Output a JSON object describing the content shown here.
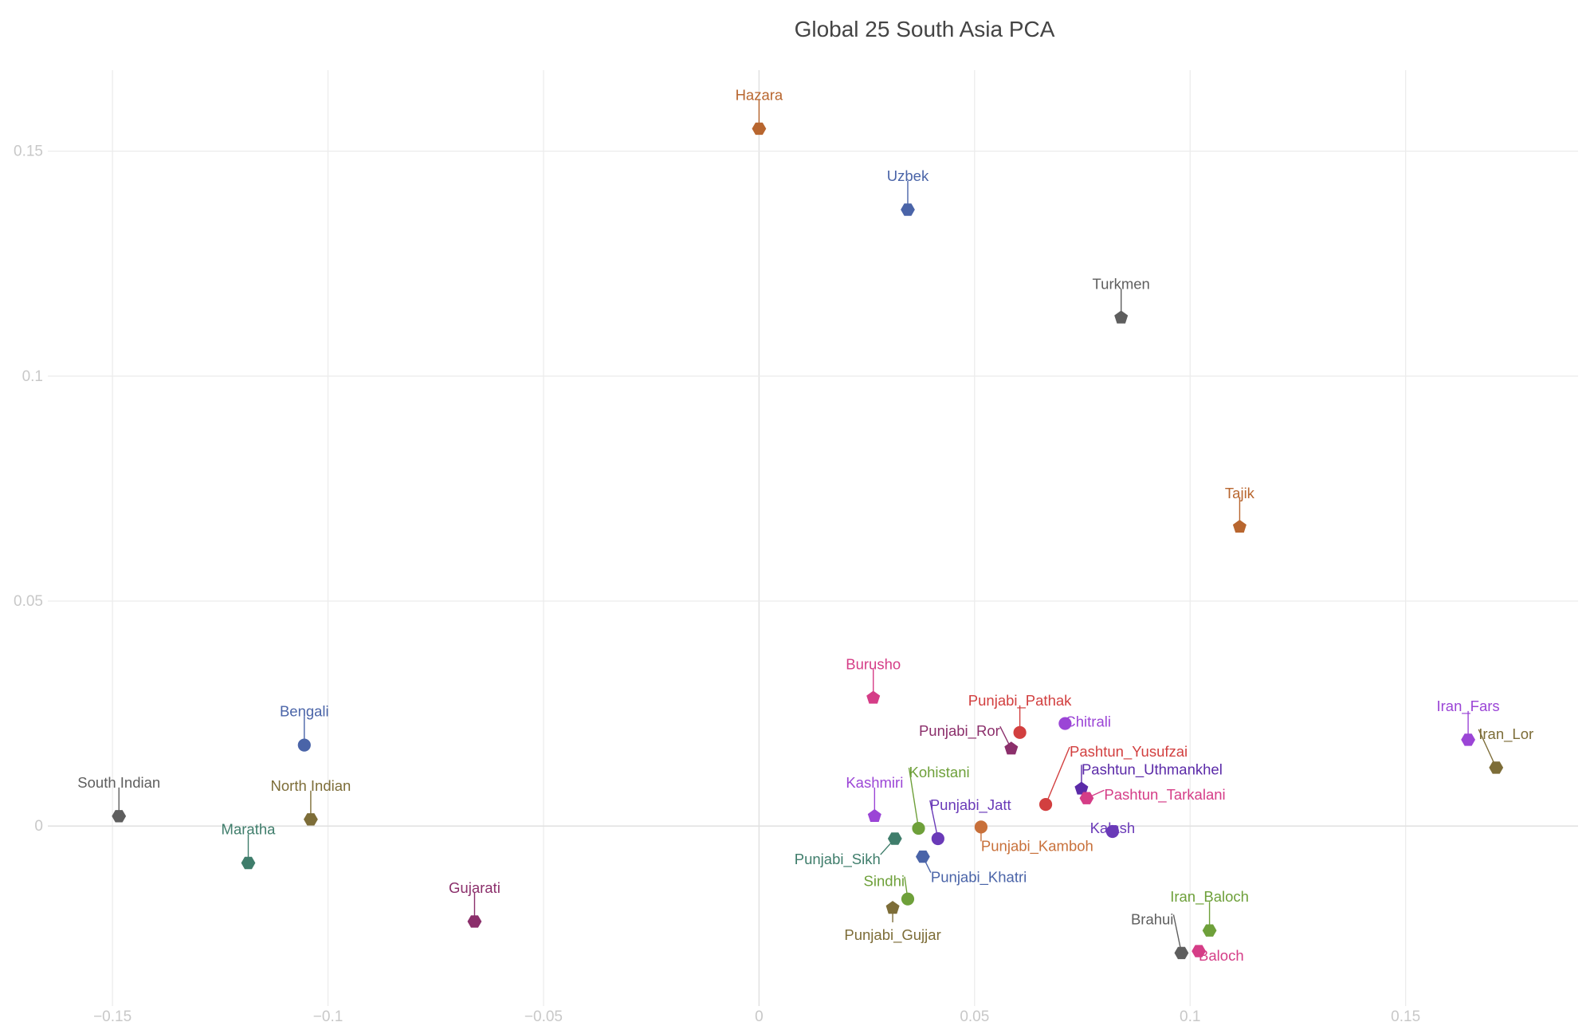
{
  "chart_data": {
    "type": "scatter",
    "title": "Global 25 South Asia PCA",
    "xlabel": "",
    "ylabel": "",
    "xlim": [
      -0.165,
      0.19
    ],
    "ylim": [
      -0.04,
      0.168
    ],
    "grid": true,
    "legend": "none",
    "x_ticks": [
      {
        "value": -0.15,
        "label": "−0.15"
      },
      {
        "value": -0.1,
        "label": "−0.1"
      },
      {
        "value": -0.05,
        "label": "−0.05"
      },
      {
        "value": 0,
        "label": "0"
      },
      {
        "value": 0.05,
        "label": "0.05"
      },
      {
        "value": 0.1,
        "label": "0.1"
      },
      {
        "value": 0.15,
        "label": "0.15"
      }
    ],
    "y_ticks": [
      {
        "value": 0,
        "label": "0"
      },
      {
        "value": 0.05,
        "label": "0.05"
      },
      {
        "value": 0.1,
        "label": "0.1"
      },
      {
        "value": 0.15,
        "label": "0.15"
      }
    ],
    "points": [
      {
        "label": "Hazara",
        "x": 0.0,
        "y": 0.155,
        "color": "#b8662f",
        "shape": "hexagon",
        "label_pos": "above"
      },
      {
        "label": "Uzbek",
        "x": 0.0345,
        "y": 0.137,
        "color": "#4a64a8",
        "shape": "hexagon",
        "label_pos": "above"
      },
      {
        "label": "Turkmen",
        "x": 0.084,
        "y": 0.113,
        "color": "#5e5e5e",
        "shape": "pentagon",
        "label_pos": "above"
      },
      {
        "label": "Tajik",
        "x": 0.1115,
        "y": 0.0665,
        "color": "#b8662f",
        "shape": "pentagon",
        "label_pos": "above"
      },
      {
        "label": "Burusho",
        "x": 0.0265,
        "y": 0.0285,
        "color": "#d53d87",
        "shape": "pentagon",
        "label_pos": "above"
      },
      {
        "label": "Bengali",
        "x": -0.1055,
        "y": 0.018,
        "color": "#4a64a8",
        "shape": "circle",
        "label_pos": "above"
      },
      {
        "label": "South Indian",
        "x": -0.1485,
        "y": 0.0022,
        "color": "#5e5e5e",
        "shape": "hexagon",
        "label_pos": "above"
      },
      {
        "label": "North Indian",
        "x": -0.104,
        "y": 0.0015,
        "color": "#7d6d38",
        "shape": "hexagon",
        "label_pos": "above"
      },
      {
        "label": "Maratha",
        "x": -0.1185,
        "y": -0.0082,
        "color": "#3f7d6b",
        "shape": "hexagon",
        "label_pos": "above"
      },
      {
        "label": "Gujarati",
        "x": -0.066,
        "y": -0.0212,
        "color": "#8b2f6b",
        "shape": "hexagon",
        "label_pos": "above"
      },
      {
        "label": "Punjabi_Pathak",
        "x": 0.0605,
        "y": 0.0208,
        "color": "#d23f3f",
        "shape": "circle",
        "label_pos": "above"
      },
      {
        "label": "Chitrali",
        "x": 0.071,
        "y": 0.0228,
        "color": "#9b45d6",
        "shape": "circle",
        "label_pos": "right"
      },
      {
        "label": "Punjabi_Ror",
        "x": 0.0585,
        "y": 0.0172,
        "color": "#8b2f6b",
        "shape": "pentagon",
        "label_pos": "upper-left"
      },
      {
        "label": "Pashtun_Yusufzai",
        "x": 0.0665,
        "y": 0.0048,
        "color": "#d23f3f",
        "shape": "circle",
        "label_pos": "upper-right"
      },
      {
        "label": "Pashtun_Uthmankhel",
        "x": 0.0748,
        "y": 0.0083,
        "color": "#5b2aa8",
        "shape": "pentagon",
        "label_pos": "upper-right"
      },
      {
        "label": "Pashtun_Tarkalani",
        "x": 0.076,
        "y": 0.0062,
        "color": "#d53d87",
        "shape": "hexagon",
        "label_pos": "right"
      },
      {
        "label": "Kashmiri",
        "x": 0.0268,
        "y": 0.0022,
        "color": "#9b45d6",
        "shape": "pentagon",
        "label_pos": "above"
      },
      {
        "label": "Kohistani",
        "x": 0.037,
        "y": -0.0005,
        "color": "#6ea03a",
        "shape": "circle",
        "label_pos": "upper-right"
      },
      {
        "label": "Punjabi_Jatt",
        "x": 0.0415,
        "y": -0.0028,
        "color": "#6a3ab8",
        "shape": "circle",
        "label_pos": "upper-right"
      },
      {
        "label": "Punjabi_Kamboh",
        "x": 0.0515,
        "y": -0.0002,
        "color": "#c8703a",
        "shape": "circle",
        "label_pos": "lower-right"
      },
      {
        "label": "Kalash",
        "x": 0.082,
        "y": -0.0012,
        "color": "#6a3ab8",
        "shape": "circle",
        "label_pos": "below"
      },
      {
        "label": "Punjabi_Sikh",
        "x": 0.0315,
        "y": -0.0028,
        "color": "#3f7d6b",
        "shape": "hexagon",
        "label_pos": "lower-left"
      },
      {
        "label": "Punjabi_Khatri",
        "x": 0.038,
        "y": -0.0068,
        "color": "#4a64a8",
        "shape": "hexagon",
        "label_pos": "lower-right"
      },
      {
        "label": "Sindhi",
        "x": 0.0345,
        "y": -0.0162,
        "color": "#6ea03a",
        "shape": "circle",
        "label_pos": "upper-left"
      },
      {
        "label": "Punjabi_Gujjar",
        "x": 0.031,
        "y": -0.0182,
        "color": "#7d6d38",
        "shape": "pentagon",
        "label_pos": "below"
      },
      {
        "label": "Iran_Fars",
        "x": 0.1645,
        "y": 0.0192,
        "color": "#9b45d6",
        "shape": "hexagon",
        "label_pos": "above"
      },
      {
        "label": "Iran_Lor",
        "x": 0.171,
        "y": 0.013,
        "color": "#7d6d38",
        "shape": "hexagon",
        "label_pos": "upper-right"
      },
      {
        "label": "Iran_Baloch",
        "x": 0.1045,
        "y": -0.0232,
        "color": "#6ea03a",
        "shape": "hexagon",
        "label_pos": "above"
      },
      {
        "label": "Brahui",
        "x": 0.098,
        "y": -0.0282,
        "color": "#5e5e5e",
        "shape": "hexagon",
        "label_pos": "upper-left"
      },
      {
        "label": "Baloch",
        "x": 0.102,
        "y": -0.0278,
        "color": "#d53d87",
        "shape": "hexagon",
        "label_pos": "lower-right"
      }
    ]
  }
}
